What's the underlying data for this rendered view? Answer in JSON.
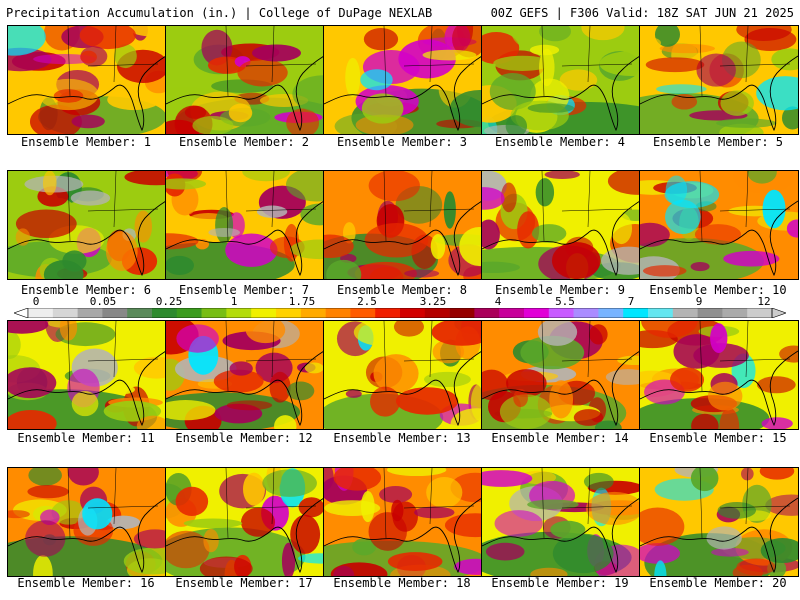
{
  "header": {
    "left": "Precipitation Accumulation (in.) | College of DuPage NEXLAB",
    "right": "00Z GEFS | F306 Valid: 18Z SAT JUN 21 2025"
  },
  "members": [
    {
      "label": "Ensemble Member: 1",
      "seed": 11
    },
    {
      "label": "Ensemble Member: 2",
      "seed": 23
    },
    {
      "label": "Ensemble Member: 3",
      "seed": 35
    },
    {
      "label": "Ensemble Member: 4",
      "seed": 47
    },
    {
      "label": "Ensemble Member: 5",
      "seed": 59
    },
    {
      "label": "Ensemble Member: 6",
      "seed": 71
    },
    {
      "label": "Ensemble Member: 7",
      "seed": 83
    },
    {
      "label": "Ensemble Member: 8",
      "seed": 95
    },
    {
      "label": "Ensemble Member: 9",
      "seed": 107
    },
    {
      "label": "Ensemble Member: 10",
      "seed": 119
    },
    {
      "label": "Ensemble Member: 11",
      "seed": 131
    },
    {
      "label": "Ensemble Member: 12",
      "seed": 143
    },
    {
      "label": "Ensemble Member: 13",
      "seed": 155
    },
    {
      "label": "Ensemble Member: 14",
      "seed": 167
    },
    {
      "label": "Ensemble Member: 15",
      "seed": 179
    },
    {
      "label": "Ensemble Member: 16",
      "seed": 191
    },
    {
      "label": "Ensemble Member: 17",
      "seed": 203
    },
    {
      "label": "Ensemble Member: 18",
      "seed": 215
    },
    {
      "label": "Ensemble Member: 19",
      "seed": 227
    },
    {
      "label": "Ensemble Member: 20",
      "seed": 239
    }
  ],
  "colorbar": {
    "ticks": [
      "0",
      "0.05",
      "0.25",
      "1",
      "1.75",
      "2.5",
      "3.25",
      "4",
      "5.5",
      "7",
      "9",
      "12"
    ],
    "colors": [
      "#eeeeee",
      "#d6d6d6",
      "#a8a8a8",
      "#888888",
      "#5a8a5a",
      "#2e8a2e",
      "#3c9c1e",
      "#78be14",
      "#b4dc0a",
      "#f0f000",
      "#ffd200",
      "#ffaa00",
      "#ff8200",
      "#ff5a00",
      "#f01e00",
      "#d20000",
      "#b40000",
      "#960000",
      "#aa005a",
      "#c8009b",
      "#e100d7",
      "#c85aff",
      "#aa8cff",
      "#78b4ff",
      "#00e6ff",
      "#64e6f0",
      "#b4b4b4",
      "#909090",
      "#aaaaaa",
      "#cccccc"
    ]
  }
}
